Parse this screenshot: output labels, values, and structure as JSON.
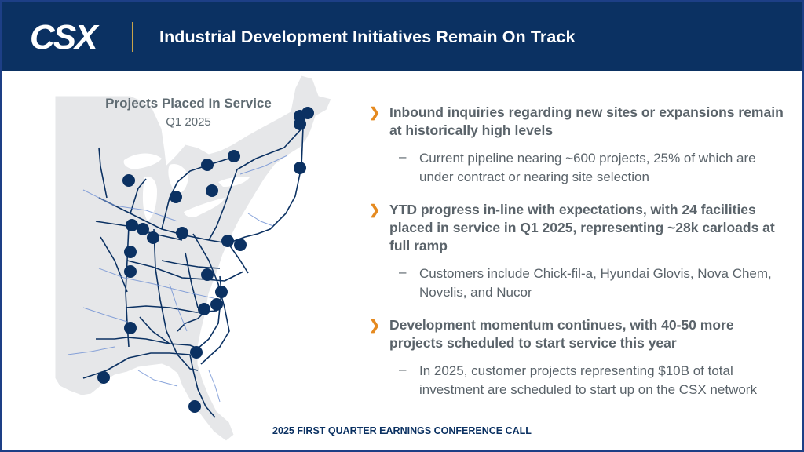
{
  "header": {
    "logo_text": "CSX",
    "title": "Industrial Development Initiatives Remain On Track"
  },
  "map": {
    "title": "Projects Placed In Service",
    "subtitle": "Q1 2025",
    "marker_color": "#0b3162",
    "marker_count": 24
  },
  "bullets": [
    {
      "text": "Inbound inquiries regarding new sites or expansions remain at historically high levels",
      "sub": [
        "Current pipeline nearing ~600 projects, 25% of which are under contract or nearing site selection"
      ]
    },
    {
      "text": "YTD progress in-line with expectations, with 24 facilities placed in service in Q1 2025, representing ~28k carloads at full ramp",
      "sub": [
        "Customers include Chick-fil-a, Hyundai Glovis, Nova Chem, Novelis, and Nucor"
      ]
    },
    {
      "text": "Development momentum continues, with 40-50 more projects scheduled to start service this year",
      "sub": [
        "In 2025, customer projects representing $10B of total investment are scheduled to start up on the CSX network"
      ]
    }
  ],
  "footer": "2025 FIRST QUARTER EARNINGS CONFERENCE CALL",
  "colors": {
    "header_bg": "#0b3162",
    "accent": "#e58a20",
    "border": "#1d3f86",
    "text": "#5a636a"
  }
}
